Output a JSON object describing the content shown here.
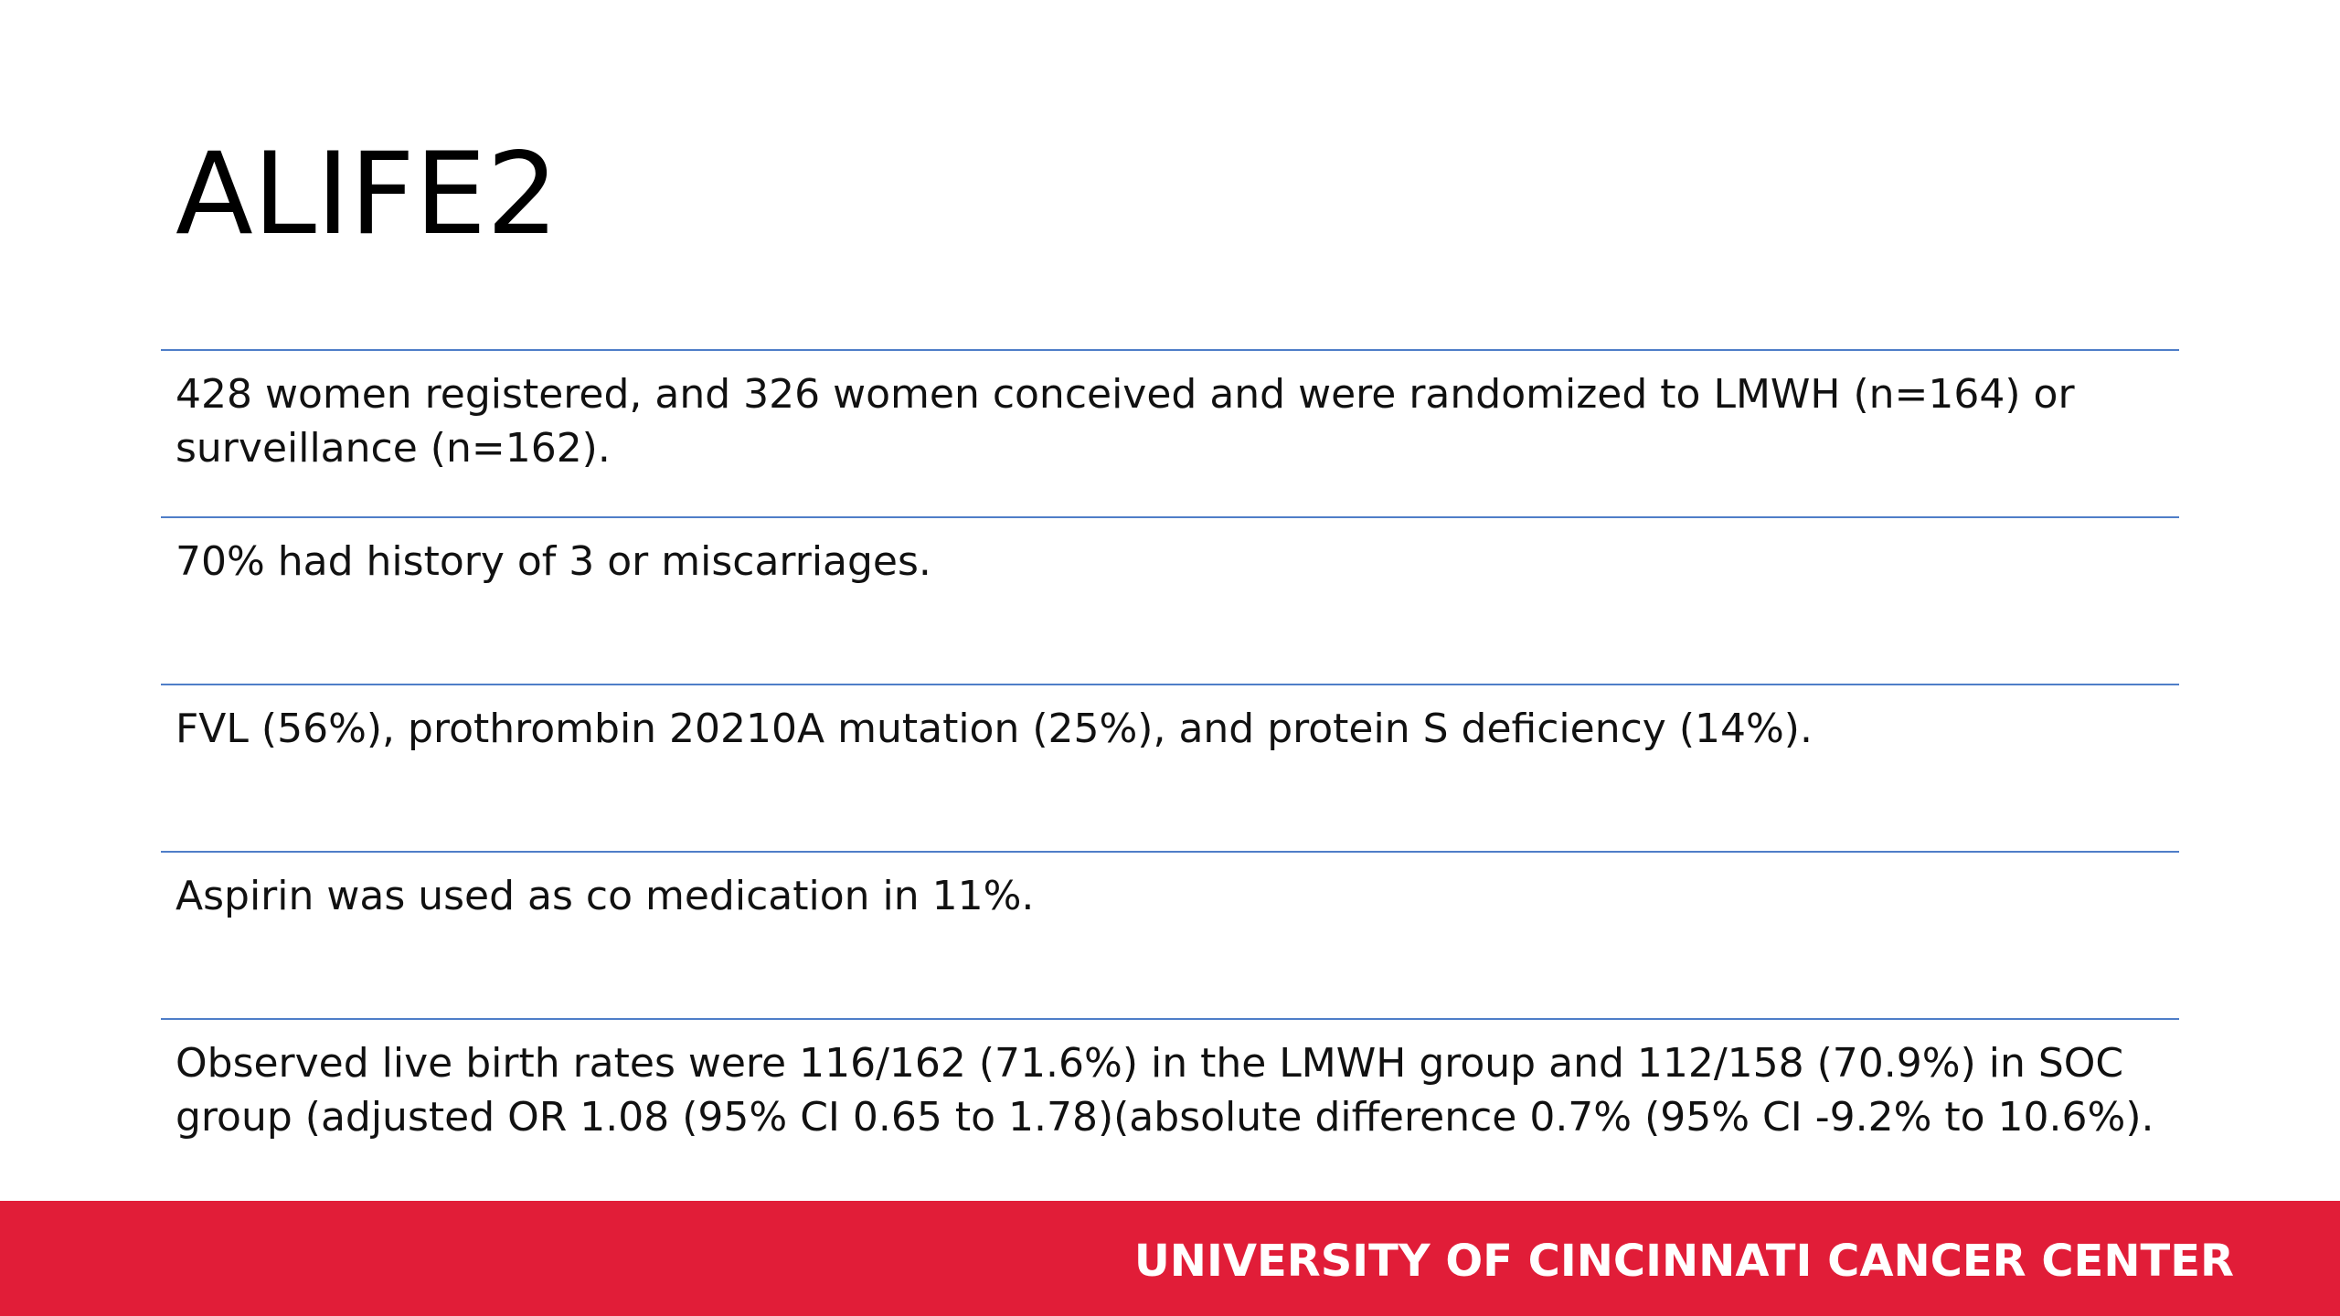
{
  "slide": {
    "title": "ALIFE2",
    "items": [
      {
        "text": "428 women registered, and 326 women conceived and were randomized to LMWH (n=164) or surveillance (n=162)."
      },
      {
        "text": "70% had history of 3 or miscarriages."
      },
      {
        "text": "FVL (56%), prothrombin 20210A mutation (25%), and protein S deficiency (14%)."
      },
      {
        "text": "Aspirin was used as co medication in 11%."
      },
      {
        "text": "Observed live birth rates were 116/162 (71.6%) in the LMWH group and 112/158 (70.9%) in SOC group (adjusted OR 1.08 (95% CI 0.65 to 1.78)(absolute difference 0.7% (95% CI -9.2% to 10.6%)."
      }
    ]
  },
  "footer": {
    "text": "UNIVERSITY OF CINCINNATI CANCER CENTER"
  },
  "colors": {
    "accent_red": "#e11d38",
    "divider_blue": "#4f7ec8",
    "background": "#ffffff"
  }
}
